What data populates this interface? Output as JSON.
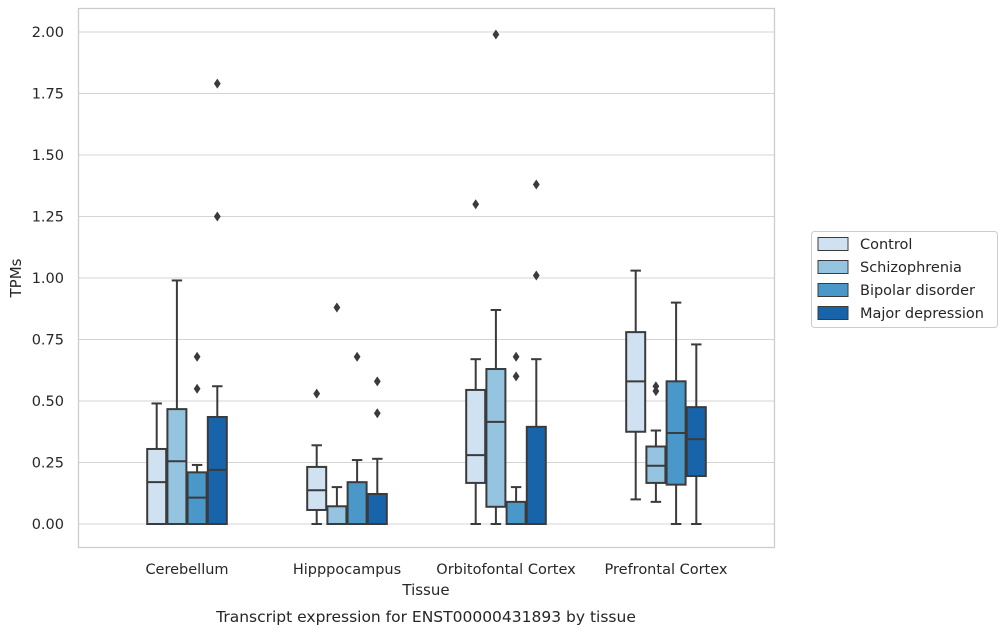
{
  "chart_data": {
    "type": "boxplot",
    "title": "",
    "caption": "Transcript expression for ENST00000431893 by tissue",
    "xlabel": "Tissue",
    "ylabel": "TPMs",
    "ylim": [
      -0.1,
      2.09
    ],
    "yticks": [
      "0.00",
      "0.25",
      "0.50",
      "0.75",
      "1.00",
      "1.25",
      "1.50",
      "1.75",
      "2.00"
    ],
    "categories": [
      "Cerebellum",
      "Hipppocampus",
      "Orbitofontal Cortex",
      "Prefrontal Cortex"
    ],
    "grid": "horizontal",
    "legend_position": "right",
    "series": [
      {
        "name": "Control",
        "color": "#d0e1f2",
        "boxes": [
          {
            "whislo": 0.0,
            "q1": 0.0,
            "med": 0.17,
            "q3": 0.305,
            "whishi": 0.49,
            "fliers": []
          },
          {
            "whislo": 0.0,
            "q1": 0.057,
            "med": 0.137,
            "q3": 0.232,
            "whishi": 0.32,
            "fliers": [
              0.53
            ]
          },
          {
            "whislo": 0.0,
            "q1": 0.167,
            "med": 0.28,
            "q3": 0.545,
            "whishi": 0.67,
            "fliers": [
              1.3
            ]
          },
          {
            "whislo": 0.1,
            "q1": 0.375,
            "med": 0.58,
            "q3": 0.78,
            "whishi": 1.03,
            "fliers": []
          }
        ]
      },
      {
        "name": "Schizophrenia",
        "color": "#94c4df",
        "boxes": [
          {
            "whislo": 0.0,
            "q1": 0.0,
            "med": 0.255,
            "q3": 0.467,
            "whishi": 0.99,
            "fliers": []
          },
          {
            "whislo": 0.0,
            "q1": 0.0,
            "med": 0.0,
            "q3": 0.072,
            "whishi": 0.15,
            "fliers": [
              0.88
            ]
          },
          {
            "whislo": 0.0,
            "q1": 0.07,
            "med": 0.415,
            "q3": 0.63,
            "whishi": 0.87,
            "fliers": [
              1.99
            ]
          },
          {
            "whislo": 0.09,
            "q1": 0.167,
            "med": 0.237,
            "q3": 0.315,
            "whishi": 0.38,
            "fliers": [
              0.54,
              0.56
            ]
          }
        ]
      },
      {
        "name": "Bipolar disorder",
        "color": "#4a98c9",
        "boxes": [
          {
            "whislo": 0.0,
            "q1": 0.0,
            "med": 0.107,
            "q3": 0.21,
            "whishi": 0.24,
            "fliers": [
              0.55,
              0.68
            ]
          },
          {
            "whislo": 0.0,
            "q1": 0.0,
            "med": 0.0,
            "q3": 0.17,
            "whishi": 0.26,
            "fliers": [
              0.68
            ]
          },
          {
            "whislo": 0.0,
            "q1": 0.0,
            "med": 0.0,
            "q3": 0.09,
            "whishi": 0.15,
            "fliers": [
              0.6,
              0.68
            ]
          },
          {
            "whislo": 0.0,
            "q1": 0.16,
            "med": 0.37,
            "q3": 0.58,
            "whishi": 0.9,
            "fliers": []
          }
        ]
      },
      {
        "name": "Major depression",
        "color": "#1764ab",
        "boxes": [
          {
            "whislo": 0.0,
            "q1": 0.0,
            "med": 0.22,
            "q3": 0.435,
            "whishi": 0.56,
            "fliers": [
              1.25,
              1.79
            ]
          },
          {
            "whislo": 0.0,
            "q1": 0.0,
            "med": 0.0,
            "q3": 0.122,
            "whishi": 0.265,
            "fliers": [
              0.45,
              0.58
            ]
          },
          {
            "whislo": 0.0,
            "q1": 0.0,
            "med": 0.0,
            "q3": 0.395,
            "whishi": 0.67,
            "fliers": [
              1.01,
              1.38
            ]
          },
          {
            "whislo": 0.0,
            "q1": 0.195,
            "med": 0.345,
            "q3": 0.475,
            "whishi": 0.73,
            "fliers": []
          }
        ]
      }
    ]
  }
}
